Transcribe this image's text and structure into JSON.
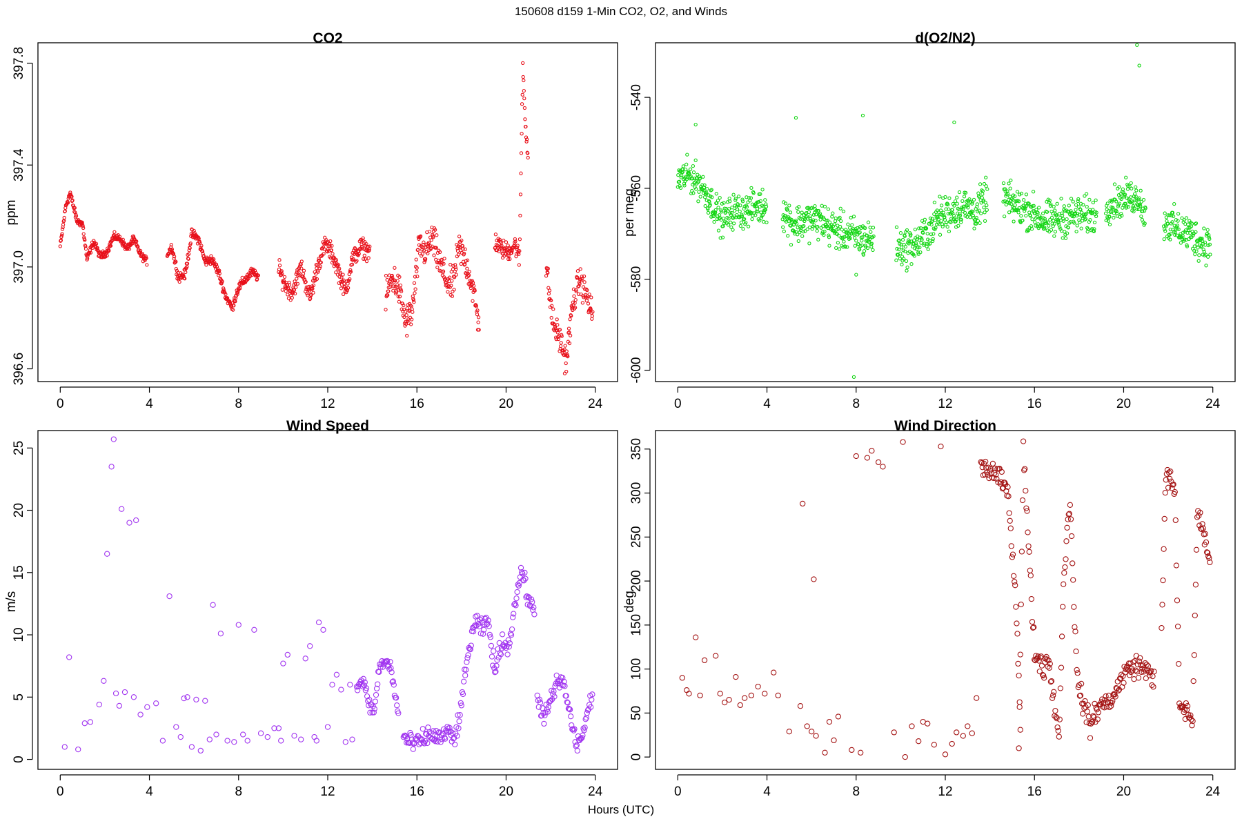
{
  "figure": {
    "title": "150608   d159   1-Min CO2, O2, and Winds",
    "xlabel": "Hours (UTC)"
  },
  "chart_data": [
    {
      "id": "co2",
      "type": "scatter",
      "title": "CO2",
      "ylabel": "ppm",
      "color": "#e8101a",
      "marker_radius": 2.1,
      "xlim": [
        -1.0,
        25.0
      ],
      "ylim": [
        396.55,
        397.88
      ],
      "xticks": [
        0,
        4,
        8,
        12,
        16,
        20,
        24
      ],
      "yticks": [
        396.6,
        397.0,
        397.4,
        397.8
      ],
      "ytick_labels": [
        "396.6",
        "397.0",
        "397.4",
        "397.8"
      ],
      "segments": [
        {
          "x": [
            0.0,
            0.25,
            0.45,
            0.75,
            1.0,
            1.2,
            1.5,
            1.8,
            2.1,
            2.4,
            2.7,
            3.0,
            3.3,
            3.6,
            3.9
          ],
          "y": [
            397.08,
            397.24,
            397.29,
            397.18,
            397.17,
            397.03,
            397.1,
            397.04,
            397.06,
            397.12,
            397.11,
            397.07,
            397.11,
            397.05,
            397.02
          ],
          "jitter": 0.015
        },
        {
          "x": [
            4.8,
            5.0,
            5.3,
            5.6,
            5.9,
            6.2,
            6.5,
            6.8,
            7.1,
            7.4,
            7.7,
            8.0,
            8.3,
            8.6,
            8.9
          ],
          "y": [
            397.05,
            397.08,
            396.96,
            396.97,
            397.13,
            397.11,
            397.02,
            397.03,
            396.98,
            396.89,
            396.84,
            396.92,
            396.95,
            396.98,
            396.96
          ],
          "jitter": 0.02
        },
        {
          "x": [
            9.8,
            10.1,
            10.4,
            10.8,
            11.2,
            11.6,
            11.9,
            12.2,
            12.5,
            12.8,
            13.1,
            13.5,
            13.9
          ],
          "y": [
            396.99,
            396.93,
            396.9,
            397.0,
            396.88,
            397.02,
            397.09,
            397.05,
            396.98,
            396.9,
            397.03,
            397.08,
            397.06
          ],
          "jitter": 0.04
        },
        {
          "x": [
            14.6,
            14.9,
            15.2,
            15.5,
            15.8,
            16.1,
            16.4,
            16.7,
            17.0,
            17.3,
            17.6,
            17.9,
            18.2,
            18.5,
            18.8
          ],
          "y": [
            396.88,
            396.96,
            396.91,
            396.78,
            396.83,
            397.08,
            397.06,
            397.11,
            397.02,
            396.95,
            396.92,
            397.08,
            397.02,
            396.92,
            396.76
          ],
          "jitter": 0.07
        },
        {
          "x": [
            19.5,
            19.8,
            20.1,
            20.4,
            20.6,
            20.75,
            20.85,
            21.0
          ],
          "y": [
            397.1,
            397.07,
            397.06,
            397.09,
            397.03,
            397.79,
            397.6,
            397.4
          ],
          "jitter": 0.04
        },
        {
          "x": [
            21.8,
            22.1,
            22.4,
            22.7,
            23.0,
            23.3,
            23.6,
            23.9
          ],
          "y": [
            397.0,
            396.78,
            396.72,
            396.63,
            396.86,
            396.95,
            396.89,
            396.8
          ],
          "jitter": 0.06
        }
      ]
    },
    {
      "id": "o2",
      "type": "scatter",
      "title": "d(O2/N2)",
      "ylabel": "per meg",
      "color": "#14d614",
      "marker_radius": 2.1,
      "xlim": [
        -1.0,
        25.0
      ],
      "ylim": [
        -602.5,
        -528.0
      ],
      "xticks": [
        0,
        4,
        8,
        12,
        16,
        20,
        24
      ],
      "yticks": [
        -600,
        -580,
        -560,
        -540
      ],
      "ytick_labels": [
        "-600",
        "-580",
        "-560",
        "-540"
      ],
      "segments": [
        {
          "x": [
            0.0,
            0.5,
            1.0,
            1.5,
            2.0,
            2.5,
            3.0,
            3.5,
            4.0
          ],
          "y": [
            -558,
            -557,
            -559,
            -563,
            -567,
            -565,
            -565,
            -564,
            -564
          ],
          "jitter": 4.0
        },
        {
          "x": [
            4.7,
            5.2,
            5.8,
            6.4,
            7.0,
            7.6,
            8.2,
            8.8
          ],
          "y": [
            -565,
            -568,
            -567,
            -567,
            -569,
            -570,
            -571,
            -571
          ],
          "jitter": 4.5
        },
        {
          "x": [
            9.8,
            10.3,
            10.8,
            11.3,
            11.8,
            12.3,
            12.8,
            13.4,
            13.9
          ],
          "y": [
            -573,
            -573,
            -572,
            -569,
            -566,
            -565,
            -564,
            -565,
            -562
          ],
          "jitter": 4.5
        },
        {
          "x": [
            14.6,
            15.2,
            15.8,
            16.4,
            17.0,
            17.6,
            18.2,
            18.8
          ],
          "y": [
            -562,
            -564,
            -565,
            -567,
            -567,
            -566,
            -566,
            -566
          ],
          "jitter": 4.5
        },
        {
          "x": [
            19.2,
            19.7,
            20.2,
            20.7,
            21.0
          ],
          "y": [
            -564,
            -563,
            -562,
            -562,
            -567
          ],
          "jitter": 4.0
        },
        {
          "x": [
            21.8,
            22.4,
            23.0,
            23.5,
            23.9
          ],
          "y": [
            -567,
            -569,
            -570,
            -572,
            -572
          ],
          "jitter": 4.5
        }
      ],
      "extra_points": {
        "x": [
          0.8,
          5.3,
          8.3,
          12.4,
          20.7,
          20.6,
          7.9,
          8.0
        ],
        "y": [
          -546,
          -544.5,
          -544,
          -545.5,
          -533,
          -528.5,
          -601.5,
          -579
        ]
      }
    },
    {
      "id": "wspd",
      "type": "scatter",
      "title": "Wind Speed",
      "ylabel": "m/s",
      "color": "#a135f0",
      "marker_radius": 3.6,
      "xlim": [
        -1.0,
        25.0
      ],
      "ylim": [
        -0.8,
        26.4
      ],
      "xticks": [
        0,
        4,
        8,
        12,
        16,
        20,
        24
      ],
      "yticks": [
        0,
        5,
        10,
        15,
        20,
        25
      ],
      "ytick_labels": [
        "0",
        "5",
        "10",
        "15",
        "20",
        "25"
      ],
      "points": {
        "x": [
          0.2,
          0.4,
          0.8,
          1.1,
          1.35,
          1.75,
          1.95,
          2.1,
          2.3,
          2.4,
          2.5,
          2.65,
          2.75,
          2.9,
          3.1,
          3.3,
          3.4,
          3.6,
          3.9,
          4.3,
          4.6,
          4.9,
          5.2,
          5.4,
          5.55,
          5.7,
          5.9,
          6.1,
          6.3,
          6.5,
          6.7,
          6.85,
          7.0,
          7.2,
          7.5,
          7.8,
          8.0,
          8.2,
          8.4,
          8.7,
          9.0,
          9.3,
          9.6,
          9.8,
          9.9,
          10.0,
          10.2,
          10.5,
          10.8,
          11.0,
          11.2,
          11.4,
          11.5,
          11.6,
          11.8,
          12.0,
          12.2,
          12.4,
          12.6,
          12.8,
          13.0,
          13.1
        ],
        "y": [
          1.0,
          8.2,
          0.8,
          2.9,
          3.0,
          4.4,
          6.3,
          16.5,
          23.5,
          25.7,
          5.3,
          4.3,
          20.1,
          5.4,
          19.0,
          5.0,
          19.2,
          3.6,
          4.2,
          4.5,
          1.5,
          13.1,
          2.6,
          1.8,
          4.9,
          5.0,
          1.0,
          4.8,
          0.7,
          4.7,
          1.6,
          12.4,
          2.0,
          10.1,
          1.5,
          1.4,
          10.8,
          2.0,
          1.5,
          10.4,
          2.1,
          1.8,
          2.5,
          2.5,
          1.5,
          7.7,
          8.4,
          1.9,
          1.6,
          8.1,
          9.1,
          1.8,
          1.5,
          11.0,
          10.4,
          2.6,
          6.0,
          6.8,
          5.6,
          1.4,
          6.0,
          1.6
        ]
      },
      "segments": [
        {
          "x": [
            13.3,
            13.6,
            13.9,
            14.1,
            14.3,
            14.6,
            14.8,
            15.0,
            15.2
          ],
          "y": [
            5.8,
            6.2,
            4.2,
            3.9,
            7.4,
            7.8,
            7.5,
            5.5,
            3.2
          ],
          "jitter": 0.6
        },
        {
          "x": [
            15.4,
            15.8,
            16.2,
            16.6,
            17.0,
            17.4,
            17.7,
            18.0,
            18.3,
            18.6,
            18.9,
            19.2,
            19.5,
            19.8,
            20.1,
            20.4,
            20.7,
            20.9,
            21.1,
            21.3
          ],
          "y": [
            1.8,
            1.2,
            1.5,
            2.0,
            1.7,
            2.2,
            1.5,
            4.5,
            8.5,
            11.0,
            10.5,
            11.0,
            7.0,
            9.5,
            9.0,
            12.5,
            15.3,
            13.5,
            12.5,
            11.5
          ],
          "jitter": 0.8
        },
        {
          "x": [
            21.4,
            21.7,
            22.0,
            22.3,
            22.6,
            22.9,
            23.2,
            23.5,
            23.7,
            23.9
          ],
          "y": [
            5.0,
            3.5,
            4.5,
            6.3,
            6.0,
            3.2,
            1.0,
            2.5,
            4.0,
            5.5
          ],
          "jitter": 0.8
        }
      ]
    },
    {
      "id": "wdir",
      "type": "scatter",
      "title": "Wind Direction",
      "ylabel": "deg",
      "color": "#a41414",
      "marker_radius": 3.6,
      "xlim": [
        -1.0,
        25.0
      ],
      "ylim": [
        -14.0,
        371.0
      ],
      "xticks": [
        0,
        4,
        8,
        12,
        16,
        20,
        24
      ],
      "yticks": [
        0,
        50,
        100,
        150,
        200,
        250,
        300,
        350
      ],
      "ytick_labels": [
        "0",
        "50",
        "100",
        "150",
        "200",
        "250",
        "300",
        "350"
      ],
      "points": {
        "x": [
          0.2,
          0.4,
          0.5,
          0.8,
          1.0,
          1.2,
          1.7,
          1.9,
          2.1,
          2.3,
          2.6,
          2.8,
          3.0,
          3.3,
          3.6,
          3.9,
          4.3,
          4.5,
          5.0,
          5.5,
          5.6,
          5.8,
          6.0,
          6.2,
          6.6,
          6.8,
          7.0,
          7.2,
          7.8,
          8.0,
          8.2,
          8.5,
          8.7,
          9.0,
          9.2,
          9.7,
          10.1,
          10.2,
          10.5,
          10.8,
          11.0,
          11.2,
          11.5,
          11.8,
          12.0,
          12.3,
          12.5,
          12.8,
          13.0,
          13.2,
          13.4,
          6.1
        ],
        "y": [
          90,
          76,
          72,
          136,
          70,
          110,
          115,
          72,
          62,
          65,
          91,
          59,
          67,
          70,
          80,
          72,
          96,
          70,
          29,
          58,
          288,
          35,
          29,
          24,
          5,
          40,
          19,
          46,
          8,
          342,
          5,
          340,
          348,
          335,
          330,
          28,
          358,
          0,
          35,
          18,
          40,
          38,
          14,
          353,
          3,
          15,
          28,
          24,
          35,
          27,
          67,
          202
        ]
      },
      "segments": [
        {
          "x": [
            13.6,
            14.0,
            14.4,
            14.8,
            15.0,
            15.2,
            15.4
          ],
          "y": [
            330,
            325,
            318,
            300,
            240,
            160,
            20
          ],
          "jitter": 12
        },
        {
          "x": [
            15.3,
            15.5,
            15.8,
            16.0,
            16.2,
            16.4,
            16.6,
            16.9,
            17.1,
            17.3,
            17.6,
            17.9,
            18.2,
            18.5,
            18.8,
            19.1,
            19.4,
            19.7,
            20.0,
            20.3,
            20.6,
            20.9,
            21.2,
            21.4
          ],
          "y": [
            5,
            350,
            210,
            120,
            110,
            100,
            115,
            60,
            20,
            200,
            295,
            90,
            60,
            35,
            55,
            60,
            65,
            75,
            95,
            100,
            105,
            100,
            95,
            90
          ],
          "jitter": 14
        },
        {
          "x": [
            21.7,
            21.9,
            22.1,
            22.3,
            22.5,
            22.7,
            22.9,
            23.1,
            23.3,
            23.5,
            23.7,
            23.9
          ],
          "y": [
            150,
            320,
            315,
            300,
            60,
            55,
            50,
            40,
            280,
            260,
            240,
            220
          ],
          "jitter": 12
        }
      ]
    }
  ]
}
